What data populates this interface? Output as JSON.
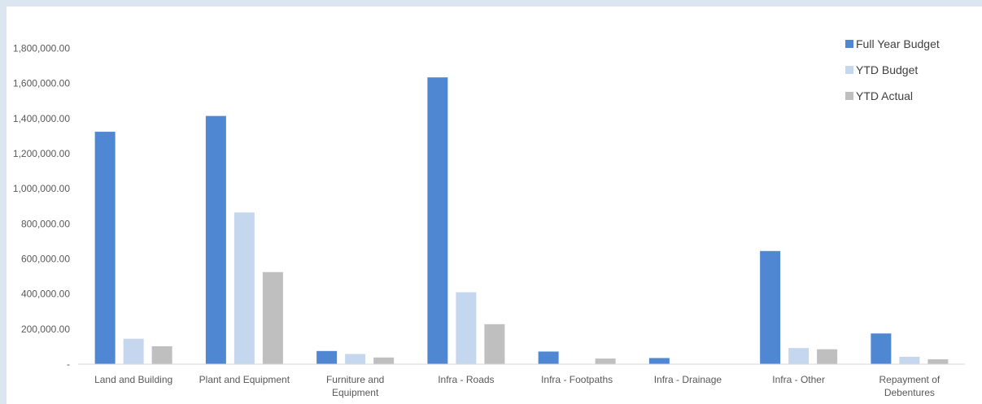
{
  "chart_data": {
    "type": "bar",
    "categories": [
      "Land and Building",
      "Plant and Equipment",
      "Furniture and Equipment",
      "Infra - Roads",
      "Infra - Footpaths",
      "Infra - Drainage",
      "Infra - Other",
      "Repayment of Debentures"
    ],
    "category_lines": [
      [
        "Land and Building"
      ],
      [
        "Plant and Equipment"
      ],
      [
        "Furniture and",
        "Equipment"
      ],
      [
        "Infra - Roads"
      ],
      [
        "Infra - Footpaths"
      ],
      [
        "Infra - Drainage"
      ],
      [
        "Infra - Other"
      ],
      [
        "Repayment of",
        "Debentures"
      ]
    ],
    "series": [
      {
        "name": "Full Year Budget",
        "color": "#4f87d2",
        "values": [
          1325000,
          1415000,
          75000,
          1635000,
          72000,
          35000,
          645000,
          175000
        ]
      },
      {
        "name": "YTD Budget",
        "color": "#c5d7ef",
        "values": [
          145000,
          865000,
          58000,
          410000,
          0,
          0,
          92000,
          42000
        ]
      },
      {
        "name": "YTD Actual",
        "color": "#bfbfbf",
        "values": [
          102000,
          525000,
          38000,
          228000,
          32000,
          0,
          85000,
          28000
        ]
      }
    ],
    "ylim": [
      0,
      1900000
    ],
    "yticks": [
      0,
      200000,
      400000,
      600000,
      800000,
      1000000,
      1200000,
      1400000,
      1600000,
      1800000
    ],
    "ytick_labels": [
      "-",
      "200,000.00",
      "400,000.00",
      "600,000.00",
      "800,000.00",
      "1,000,000.00",
      "1,200,000.00",
      "1,400,000.00",
      "1,600,000.00",
      "1,800,000.00"
    ],
    "title": "",
    "xlabel": "",
    "ylabel": "",
    "grid": false,
    "legend": "top-right"
  }
}
